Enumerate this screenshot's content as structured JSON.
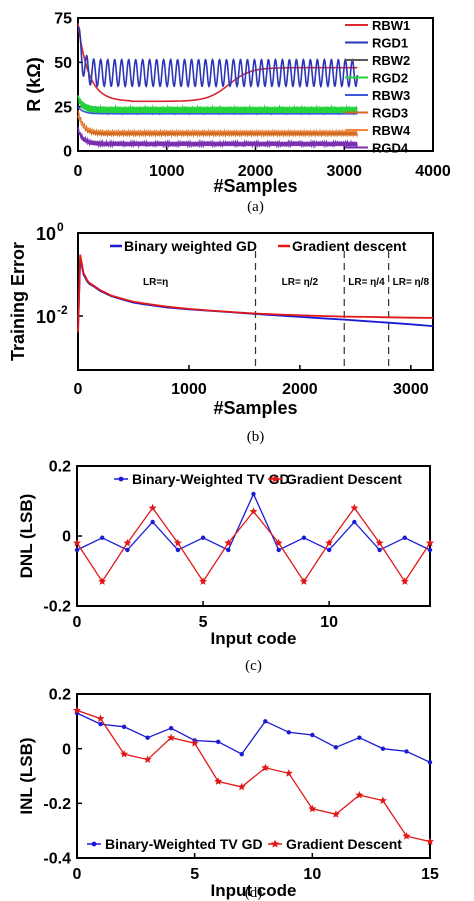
{
  "chart_data": [
    {
      "id": "a",
      "type": "line",
      "caption": "(a)",
      "xlabel": "#Samples",
      "ylabel": "R (kΩ)",
      "xlim": [
        0,
        4000
      ],
      "ylim": [
        0,
        75
      ],
      "xticks": [
        0,
        1000,
        2000,
        3000,
        4000
      ],
      "yticks": [
        0,
        25,
        50,
        75
      ],
      "xtick_labels": [
        "0",
        "1000",
        "2000",
        "3000",
        "4000"
      ],
      "ytick_labels": [
        "0",
        "25",
        "50",
        "75"
      ],
      "legend_position": "right",
      "series": [
        {
          "name": "RBW1",
          "color": "#d9282f",
          "start": 72,
          "settle": 47,
          "amp": 0.5,
          "cycles": 0,
          "tau": 600,
          "transition": 1700
        },
        {
          "name": "RGD1",
          "color": "#2b35b8",
          "start": 70,
          "settle": 44,
          "amp": 7.5,
          "cycles": 40,
          "tau": 40
        },
        {
          "name": "RBW2",
          "color": "#5a5a5a",
          "start": 30,
          "settle": 24,
          "amp": 0.5,
          "cycles": 0,
          "tau": 80
        },
        {
          "name": "RGD2",
          "color": "#22d43a",
          "start": 30,
          "settle": 23,
          "amp": 2.0,
          "cycles": 150,
          "tau": 60
        },
        {
          "name": "RBW3",
          "color": "#3d57d8",
          "start": 25,
          "settle": 21,
          "amp": 0.5,
          "cycles": 0,
          "tau": 60
        },
        {
          "name": "RGD3",
          "color": "#d2691e",
          "start": 22,
          "settle": 10,
          "amp": 1.2,
          "cycles": 140,
          "tau": 60
        },
        {
          "name": "RBW4",
          "color": "#f08a3c",
          "start": 20,
          "settle": 11,
          "amp": 0.4,
          "cycles": 0,
          "tau": 60
        },
        {
          "name": "RGD4",
          "color": "#7a2fb0",
          "start": 12,
          "settle": 4,
          "amp": 1.2,
          "cycles": 160,
          "tau": 60
        }
      ]
    },
    {
      "id": "b",
      "type": "line",
      "caption": "(b)",
      "xlabel": "#Samples",
      "ylabel": "Training Error",
      "yscale": "log",
      "xlim": [
        0,
        3200
      ],
      "ylim": [
        0.0005,
        1
      ],
      "xticks": [
        0,
        1000,
        2000,
        3000
      ],
      "xtick_labels": [
        "0",
        "1000",
        "2000",
        "3000"
      ],
      "ytick_labels": [
        {
          "base": "10",
          "exp": "0",
          "value": 1
        },
        {
          "base": "10",
          "exp": "-2",
          "value": 0.01
        }
      ],
      "legend_position": "top",
      "annotations": [
        {
          "text": "LR=η",
          "x": 700
        },
        {
          "text": "LR= η/2",
          "x": 2000
        },
        {
          "text": "LR= η/4",
          "x": 2600
        },
        {
          "text": "LR= η/8",
          "x": 3000
        }
      ],
      "vlines": [
        1600,
        2400,
        2800
      ],
      "series": [
        {
          "name": "Binary weighted GD",
          "color": "#1a1ad6",
          "x": [
            0,
            20,
            50,
            80,
            100,
            150,
            200,
            300,
            400,
            500,
            600,
            800,
            1000,
            1200,
            1400,
            1600,
            1800,
            2000,
            2200,
            2400,
            2600,
            2800,
            3000,
            3200
          ],
          "y": [
            0.004,
            0.25,
            0.1,
            0.07,
            0.06,
            0.05,
            0.04,
            0.03,
            0.025,
            0.021,
            0.019,
            0.016,
            0.0145,
            0.0133,
            0.0122,
            0.0112,
            0.0103,
            0.0095,
            0.0088,
            0.0082,
            0.0075,
            0.0069,
            0.0063,
            0.0057
          ]
        },
        {
          "name": "Gradient descent",
          "color": "#e01818",
          "x": [
            0,
            20,
            50,
            80,
            100,
            150,
            200,
            300,
            400,
            500,
            600,
            800,
            1000,
            1200,
            1400,
            1600,
            1800,
            2000,
            2200,
            2400,
            2600,
            2800,
            3000,
            3200
          ],
          "y": [
            0.004,
            0.3,
            0.11,
            0.075,
            0.063,
            0.052,
            0.042,
            0.031,
            0.026,
            0.022,
            0.02,
            0.0168,
            0.0148,
            0.0135,
            0.0124,
            0.0115,
            0.0109,
            0.0104,
            0.01,
            0.0097,
            0.0095,
            0.0093,
            0.0091,
            0.009
          ]
        }
      ]
    },
    {
      "id": "c",
      "type": "line",
      "caption": "(c)",
      "xlabel": "Input code",
      "ylabel": "DNL (LSB)",
      "xlim": [
        0,
        14
      ],
      "ylim": [
        -0.2,
        0.2
      ],
      "xticks": [
        0,
        5,
        10
      ],
      "yticks": [
        -0.2,
        0,
        0.2
      ],
      "xtick_labels": [
        "0",
        "5",
        "10"
      ],
      "ytick_labels": [
        "-0.2",
        "0",
        "0.2"
      ],
      "legend_position": "top",
      "series": [
        {
          "name": "Binary-Weighted TV GD",
          "color": "#1a1ad6",
          "marker": "dot",
          "x": [
            0,
            1,
            2,
            3,
            4,
            5,
            6,
            7,
            8,
            9,
            10,
            11,
            12,
            13,
            14
          ],
          "y": [
            -0.04,
            -0.005,
            -0.04,
            0.04,
            -0.04,
            -0.005,
            -0.04,
            0.12,
            -0.04,
            -0.005,
            -0.04,
            0.04,
            -0.04,
            -0.005,
            -0.04
          ]
        },
        {
          "name": "Gradient Descent",
          "color": "#e01818",
          "marker": "star",
          "x": [
            0,
            1,
            2,
            3,
            4,
            5,
            6,
            7,
            8,
            9,
            10,
            11,
            12,
            13,
            14
          ],
          "y": [
            -0.02,
            -0.13,
            -0.02,
            0.08,
            -0.02,
            -0.13,
            -0.02,
            0.07,
            -0.02,
            -0.13,
            -0.02,
            0.08,
            -0.02,
            -0.13,
            -0.02
          ]
        }
      ]
    },
    {
      "id": "d",
      "type": "line",
      "caption": "(d)",
      "xlabel": "Input code",
      "ylabel": "INL (LSB)",
      "xlim": [
        0,
        15
      ],
      "ylim": [
        -0.4,
        0.2
      ],
      "xticks": [
        0,
        5,
        10,
        15
      ],
      "yticks": [
        -0.4,
        -0.2,
        0,
        0.2
      ],
      "xtick_labels": [
        "0",
        "5",
        "10",
        "15"
      ],
      "ytick_labels": [
        "-0.4",
        "-0.2",
        "0",
        "0.2"
      ],
      "legend_position": "bottom",
      "series": [
        {
          "name": "Binary-Weighted TV GD",
          "color": "#1a1ad6",
          "marker": "dot",
          "x": [
            0,
            1,
            2,
            3,
            4,
            5,
            6,
            7,
            8,
            9,
            10,
            11,
            12,
            13,
            14,
            15
          ],
          "y": [
            0.13,
            0.09,
            0.08,
            0.04,
            0.075,
            0.03,
            0.025,
            -0.02,
            0.1,
            0.06,
            0.05,
            0.005,
            0.04,
            0.0,
            -0.01,
            -0.05
          ]
        },
        {
          "name": "Gradient Descent",
          "color": "#e01818",
          "marker": "star",
          "x": [
            0,
            1,
            2,
            3,
            4,
            5,
            6,
            7,
            8,
            9,
            10,
            11,
            12,
            13,
            14,
            15
          ],
          "y": [
            0.14,
            0.11,
            -0.02,
            -0.04,
            0.04,
            0.02,
            -0.12,
            -0.14,
            -0.07,
            -0.09,
            -0.22,
            -0.24,
            -0.17,
            -0.19,
            -0.32,
            -0.34
          ]
        }
      ]
    }
  ]
}
